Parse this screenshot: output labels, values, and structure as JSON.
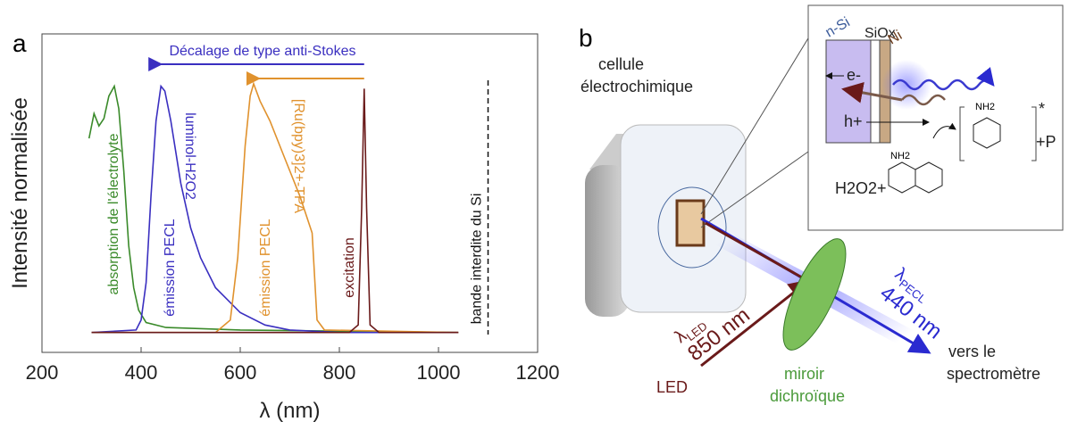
{
  "chart_data": {
    "type": "line",
    "panel_label": "a",
    "x_label": "λ (nm)",
    "y_label": "Intensité normalisée",
    "xlim": [
      200,
      1200
    ],
    "xticks": [
      200,
      400,
      600,
      800,
      1000,
      1200
    ],
    "ylim": [
      -0.08,
      1.2
    ],
    "series": [
      {
        "name": "absorption de l'électrolyte",
        "color": "#3a8a2a",
        "x": [
          295,
          305,
          315,
          325,
          335,
          346,
          355,
          365,
          375,
          385,
          395,
          410,
          450,
          600,
          1040
        ],
        "values": [
          0.78,
          0.88,
          0.83,
          0.86,
          0.95,
          0.99,
          0.9,
          0.65,
          0.35,
          0.18,
          0.09,
          0.04,
          0.02,
          0.01,
          0
        ]
      },
      {
        "name": "émission PECL",
        "color": "#3a2fc0",
        "label2": "luminol-H2O2",
        "x": [
          300,
          390,
          400,
          410,
          420,
          430,
          440,
          448,
          460,
          480,
          500,
          520,
          550,
          600,
          650,
          700,
          800,
          1040
        ],
        "values": [
          0,
          0.01,
          0.05,
          0.2,
          0.55,
          0.85,
          0.99,
          0.97,
          0.85,
          0.6,
          0.42,
          0.3,
          0.18,
          0.08,
          0.03,
          0.01,
          0,
          0
        ]
      },
      {
        "name": "émission PECL",
        "color": "#e0922e",
        "label2": "[Ru(bpy)3]2+-TPA",
        "x": [
          300,
          550,
          580,
          595,
          610,
          620,
          627,
          640,
          660,
          690,
          720,
          745,
          755,
          770,
          1040
        ],
        "values": [
          0,
          0,
          0.05,
          0.3,
          0.75,
          0.95,
          1.0,
          0.93,
          0.85,
          0.7,
          0.55,
          0.4,
          0.05,
          0.01,
          0
        ]
      },
      {
        "name": "excitation",
        "color": "#6a1a1a",
        "x": [
          300,
          820,
          838,
          845,
          850,
          855,
          862,
          880,
          1040
        ],
        "values": [
          0,
          0,
          0.03,
          0.5,
          0.98,
          0.5,
          0.03,
          0,
          0
        ]
      }
    ],
    "bandgap": {
      "x": 1100,
      "label": "bande interdite du Si"
    },
    "shift_arrow": {
      "label": "Décalage de type anti-Stokes",
      "from": 850,
      "to": 440
    }
  },
  "diagram": {
    "panel_label": "b",
    "cell": [
      "cellule",
      "électrochimique"
    ],
    "led_wavelength": {
      "symbol": "λ",
      "sub": "LED",
      "value": "850 nm"
    },
    "pecl_wavelength": {
      "symbol": "λ",
      "sub": "PECL",
      "value": "440 nm"
    },
    "led": "LED",
    "mirror": [
      "miroir",
      "dichroïque"
    ],
    "output": [
      "vers le",
      "spectromètre"
    ],
    "inset": {
      "layers": [
        "n-Si",
        "SiOx",
        "Ni"
      ],
      "electron": "e-",
      "hole": "h+",
      "reactant": "H2O2+",
      "product": "+P",
      "excited": "*",
      "amine": "NH2"
    }
  }
}
